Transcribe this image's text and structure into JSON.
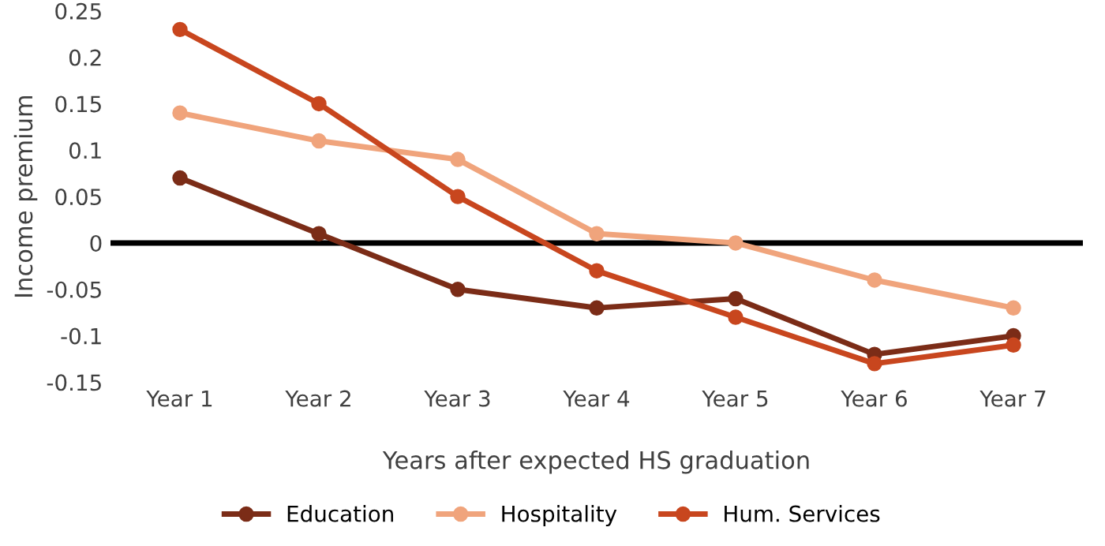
{
  "chart_data": {
    "type": "line",
    "xlabel": "Years after expected HS graduation",
    "ylabel": "Income premium",
    "categories": [
      "Year 1",
      "Year 2",
      "Year 3",
      "Year 4",
      "Year 5",
      "Year 6",
      "Year 7"
    ],
    "series": [
      {
        "name": "Education",
        "color": "#7b2c17",
        "values": [
          0.07,
          0.01,
          -0.05,
          -0.07,
          -0.06,
          -0.12,
          -0.1
        ]
      },
      {
        "name": "Hospitality",
        "color": "#f0a47c",
        "values": [
          0.14,
          0.11,
          0.09,
          0.01,
          0.0,
          -0.04,
          -0.07
        ]
      },
      {
        "name": "Hum. Services",
        "color": "#c8461e",
        "values": [
          0.23,
          0.15,
          0.05,
          -0.03,
          -0.08,
          -0.13,
          -0.11
        ]
      }
    ],
    "ylim": [
      -0.15,
      0.25
    ],
    "yticks": [
      -0.15,
      -0.1,
      -0.05,
      0,
      0.05,
      0.1,
      0.15,
      0.2,
      0.25
    ],
    "ref_lines": [
      {
        "axis": "y",
        "value": 0,
        "color": "#000000"
      }
    ],
    "grid": false,
    "legend": "bottom",
    "marker": "circle",
    "line_style": "solid"
  }
}
